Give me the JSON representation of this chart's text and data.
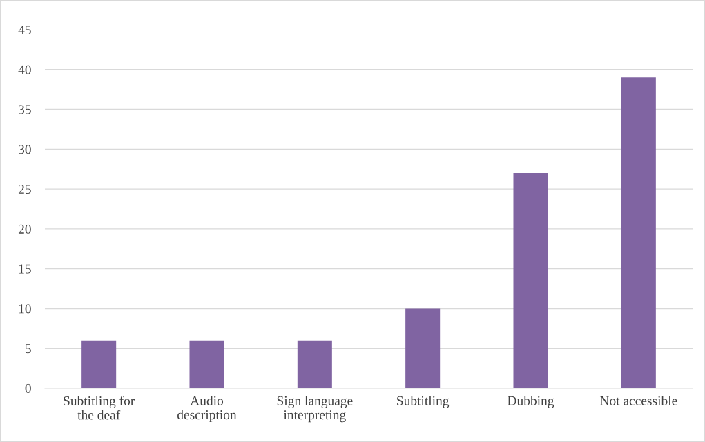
{
  "chart_data": {
    "type": "bar",
    "categories": [
      "Subtitling for\nthe deaf",
      "Audio\ndescription",
      "Sign language\ninterpreting",
      "Subtitling",
      "Dubbing",
      "Not accessible"
    ],
    "values": [
      6,
      6,
      6,
      10,
      27,
      39
    ],
    "color": "#8064a2",
    "ylim": [
      0,
      45
    ],
    "yticks": [
      0,
      5,
      10,
      15,
      20,
      25,
      30,
      35,
      40,
      45
    ],
    "grid": "y"
  }
}
